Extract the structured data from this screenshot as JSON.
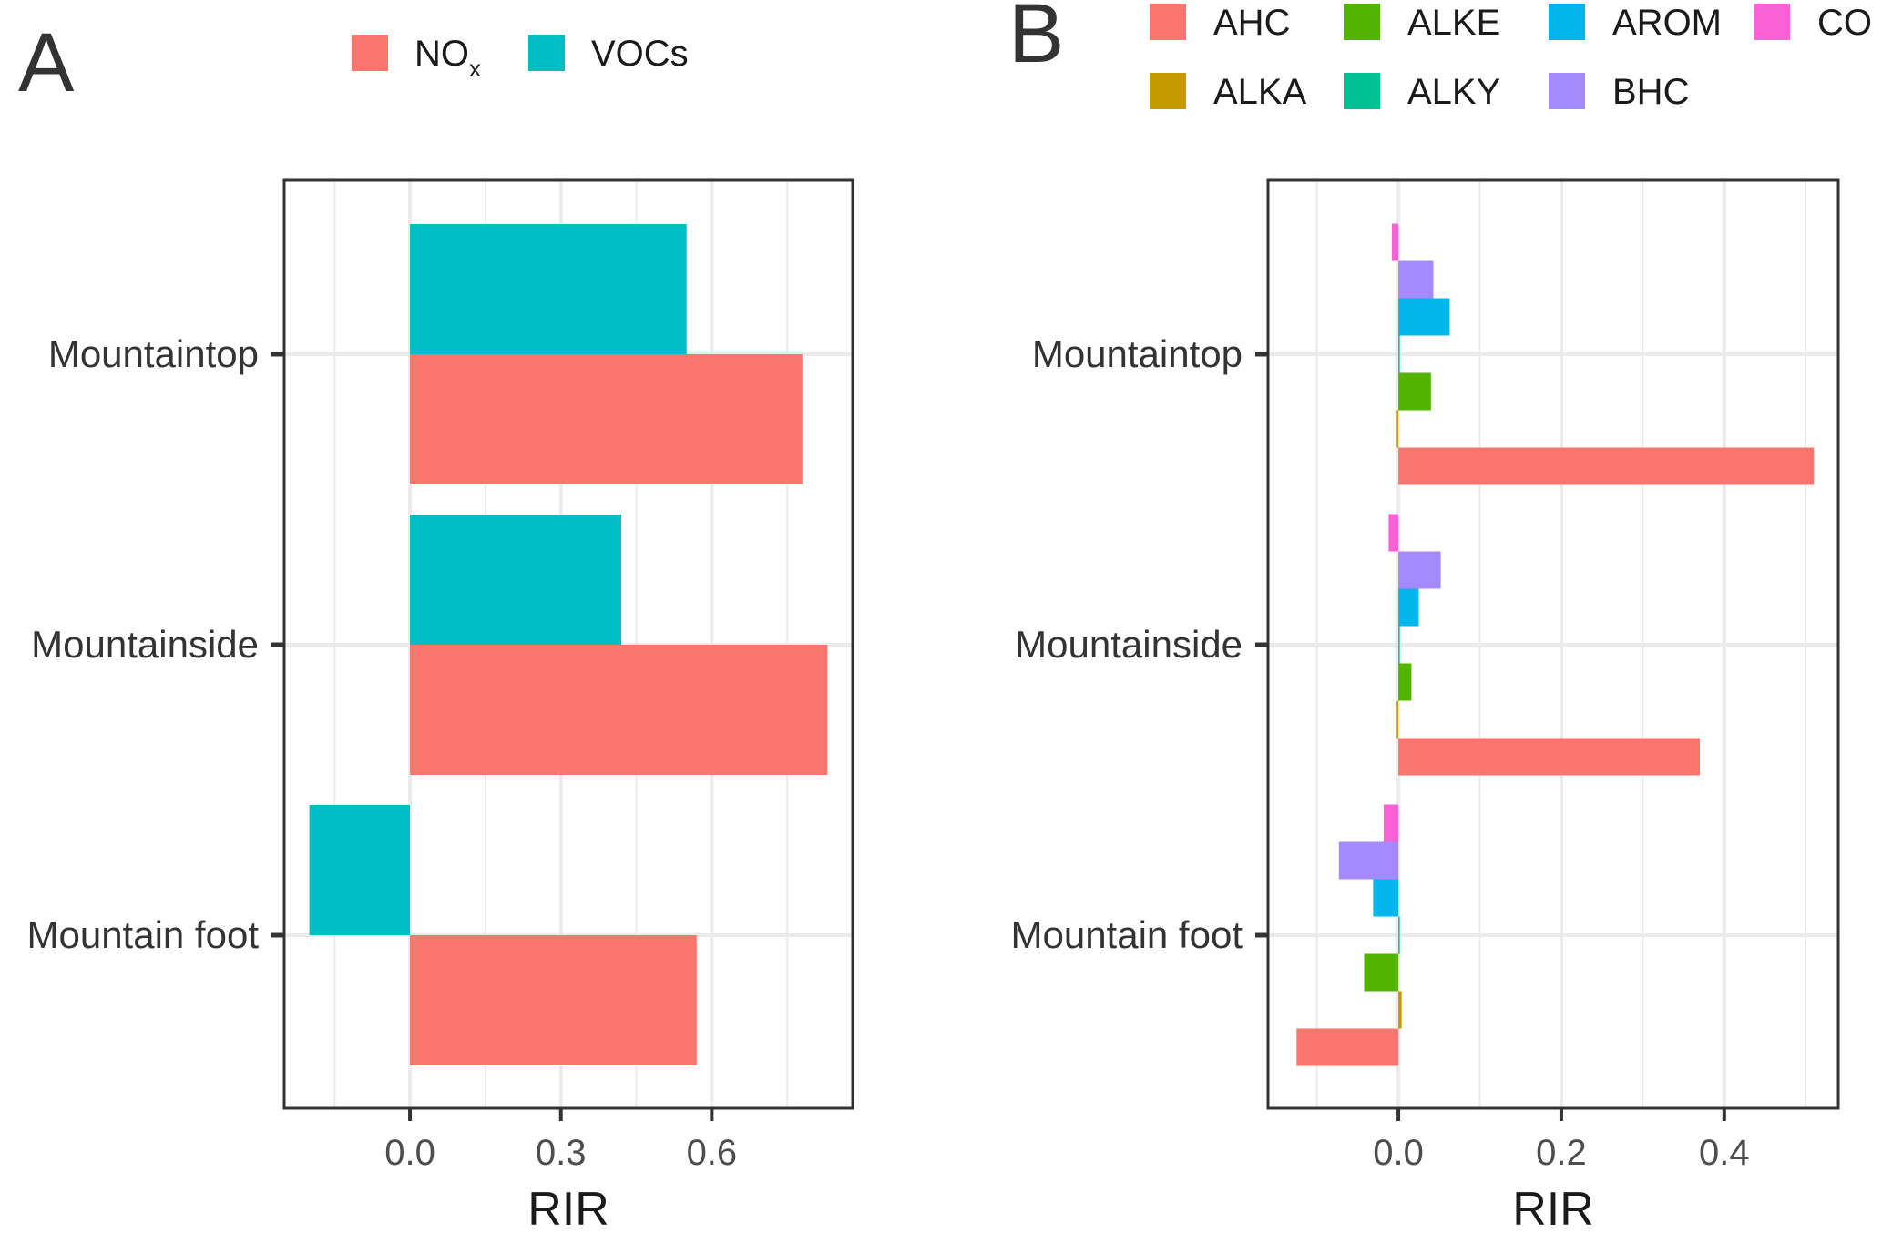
{
  "chart_data": [
    {
      "panel_label": "A",
      "type": "bar",
      "orientation": "horizontal",
      "categories": [
        "Mountaintop",
        "Mountainside",
        "Mountain foot"
      ],
      "series": [
        {
          "name": "NO",
          "name_sub": "x",
          "color": "#F8766D",
          "values": [
            0.78,
            0.83,
            0.57
          ]
        },
        {
          "name": "VOCs",
          "color": "#00BFC4",
          "values": [
            0.55,
            0.42,
            -0.2
          ]
        }
      ],
      "xlabel": "RIR",
      "xlim": [
        -0.25,
        0.88
      ],
      "xticks": [
        0.0,
        0.3,
        0.6
      ],
      "xtick_labels": [
        "0.0",
        "0.3",
        "0.6"
      ],
      "grid": true,
      "legend_position": "top"
    },
    {
      "panel_label": "B",
      "type": "bar",
      "orientation": "horizontal",
      "categories": [
        "Mountaintop",
        "Mountainside",
        "Mountain foot"
      ],
      "series": [
        {
          "name": "AHC",
          "color": "#F8766D",
          "values": [
            0.51,
            0.37,
            -0.125
          ]
        },
        {
          "name": "ALKA",
          "color": "#C49A00",
          "values": [
            -0.002,
            -0.002,
            0.004
          ]
        },
        {
          "name": "ALKE",
          "color": "#53B400",
          "values": [
            0.04,
            0.016,
            -0.042
          ]
        },
        {
          "name": "ALKY",
          "color": "#00C094",
          "values": [
            0.001,
            0.001,
            0.001
          ]
        },
        {
          "name": "AROM",
          "color": "#00B6EB",
          "values": [
            0.063,
            0.025,
            -0.031
          ]
        },
        {
          "name": "BHC",
          "color": "#A58AFF",
          "values": [
            0.043,
            0.052,
            -0.073
          ]
        },
        {
          "name": "CO",
          "color": "#FB61D7",
          "values": [
            -0.008,
            -0.012,
            -0.018
          ]
        }
      ],
      "xlabel": "RIR",
      "xlim": [
        -0.16,
        0.54
      ],
      "xticks": [
        0.0,
        0.2,
        0.4
      ],
      "xtick_labels": [
        "0.0",
        "0.2",
        "0.4"
      ],
      "grid": true,
      "legend_position": "top"
    }
  ]
}
